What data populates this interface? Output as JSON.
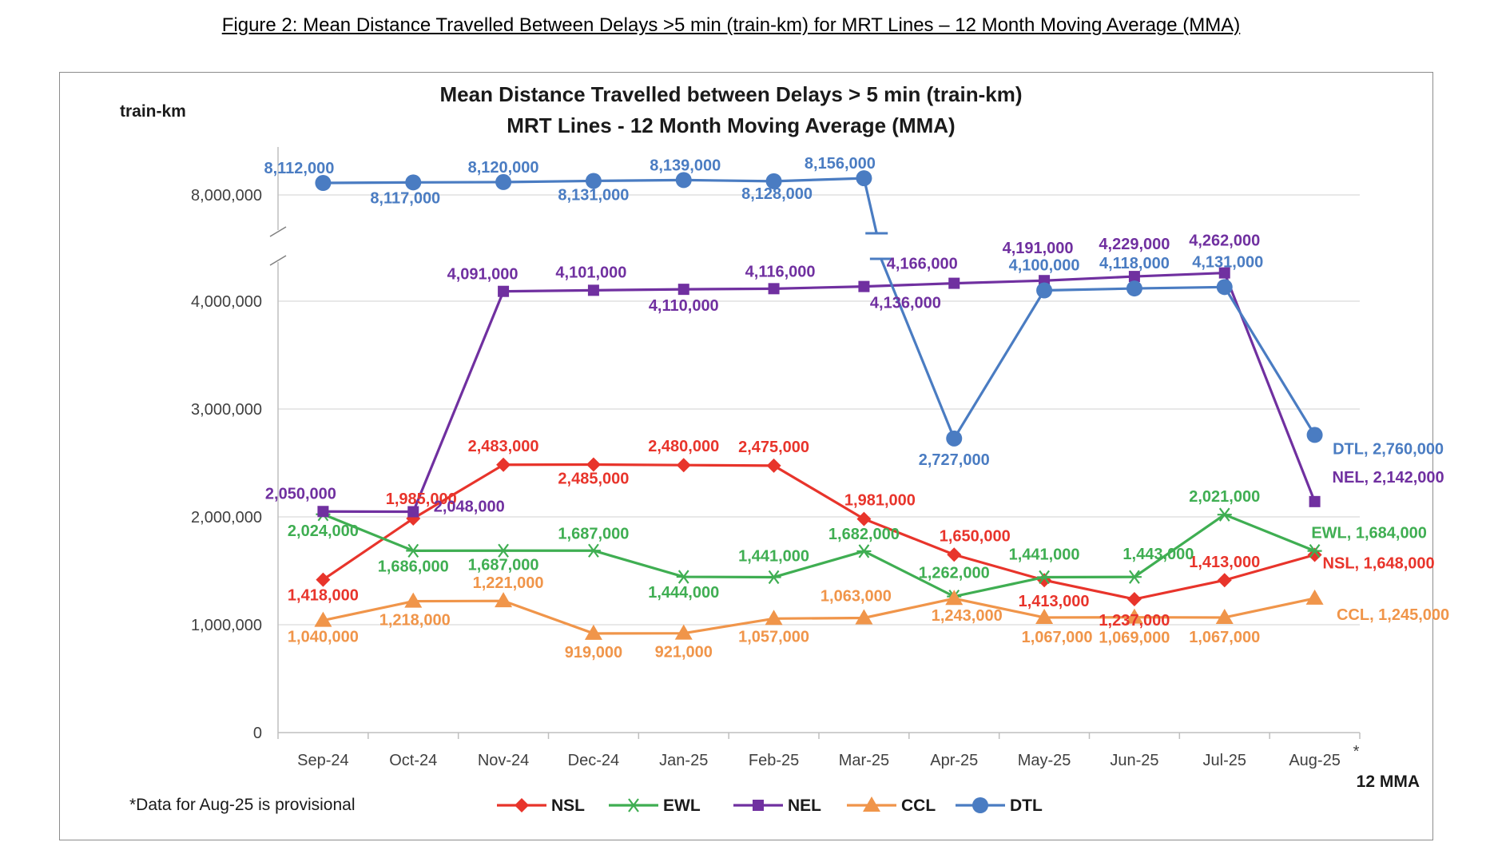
{
  "caption": "Figure 2: Mean Distance Travelled Between Delays >5 min (train-km) for MRT Lines – 12 Month Moving Average (MMA)",
  "chart_data": {
    "type": "line",
    "title": "Mean Distance Travelled between Delays > 5 min (train-km)",
    "subtitle": "MRT Lines - 12 Month Moving Average (MMA)",
    "ylabel": "train-km",
    "xlabel": "12 MMA",
    "categories": [
      "Sep-24",
      "Oct-24",
      "Nov-24",
      "Dec-24",
      "Jan-25",
      "Feb-25",
      "Mar-25",
      "Apr-25",
      "May-25",
      "Jun-25",
      "Jul-25",
      "Aug-25"
    ],
    "provisional_marker": "*",
    "footnote": "*Data for Aug-25 is provisional",
    "y_ticks": [
      {
        "value": 0,
        "label": "0"
      },
      {
        "value": 1000000,
        "label": "1,000,000"
      },
      {
        "value": 2000000,
        "label": "2,000,000"
      },
      {
        "value": 3000000,
        "label": "3,000,000"
      },
      {
        "value": 4000000,
        "label": "4,000,000"
      },
      {
        "value": 8000000,
        "label": "8,000,000"
      }
    ],
    "axis_break": true,
    "grid": true,
    "legend_position": "bottom",
    "series": [
      {
        "name": "NSL",
        "color": "#e8342b",
        "marker": "diamond",
        "values": [
          1418000,
          1985000,
          2483000,
          2485000,
          2480000,
          2475000,
          1981000,
          1650000,
          1413000,
          1237000,
          1413000,
          1648000
        ],
        "labels": [
          "1,418,000",
          "1,985,000",
          "2,483,000",
          "2,485,000",
          "2,480,000",
          "2,475,000",
          "1,981,000",
          "1,650,000",
          "1,413,000",
          "1,237,000",
          "1,413,000",
          "NSL, 1,648,000"
        ]
      },
      {
        "name": "EWL",
        "color": "#3fae52",
        "marker": "asterisk",
        "values": [
          2024000,
          1686000,
          1687000,
          1687000,
          1444000,
          1441000,
          1682000,
          1262000,
          1441000,
          1443000,
          2021000,
          1684000
        ],
        "labels": [
          "2,024,000",
          "1,686,000",
          "1,687,000",
          "1,687,000",
          "1,444,000",
          "1,441,000",
          "1,682,000",
          "1,262,000",
          "1,441,000",
          "1,443,000",
          "2,021,000",
          "EWL, 1,684,000"
        ]
      },
      {
        "name": "NEL",
        "color": "#7030a0",
        "marker": "square",
        "values": [
          2050000,
          2048000,
          4091000,
          4101000,
          4110000,
          4116000,
          4136000,
          4166000,
          4191000,
          4229000,
          4262000,
          2142000
        ],
        "labels": [
          "2,050,000",
          "2,048,000",
          "4,091,000",
          "4,101,000",
          "4,110,000",
          "4,116,000",
          "4,136,000",
          "4,166,000",
          "4,191,000",
          "4,229,000",
          "4,262,000",
          "NEL, 2,142,000"
        ]
      },
      {
        "name": "CCL",
        "color": "#f0954a",
        "marker": "triangle",
        "values": [
          1040000,
          1218000,
          1221000,
          919000,
          921000,
          1057000,
          1063000,
          1243000,
          1067000,
          1069000,
          1067000,
          1245000
        ],
        "labels": [
          "1,040,000",
          "1,218,000",
          "1,221,000",
          "919,000",
          "921,000",
          "1,057,000",
          "1,063,000",
          "1,243,000",
          "1,067,000",
          "1,069,000",
          "1,067,000",
          "CCL, 1,245,000"
        ]
      },
      {
        "name": "DTL",
        "color": "#4a7cc2",
        "marker": "circle",
        "values": [
          8112000,
          8117000,
          8120000,
          8131000,
          8139000,
          8128000,
          8156000,
          2727000,
          4100000,
          4118000,
          4131000,
          2760000
        ],
        "labels": [
          "8,112,000",
          "8,117,000",
          "8,120,000",
          "8,131,000",
          "8,139,000",
          "8,128,000",
          "8,156,000",
          "2,727,000",
          "4,100,000",
          "4,118,000",
          "4,131,000",
          "DTL, 2,760,000"
        ]
      }
    ]
  }
}
